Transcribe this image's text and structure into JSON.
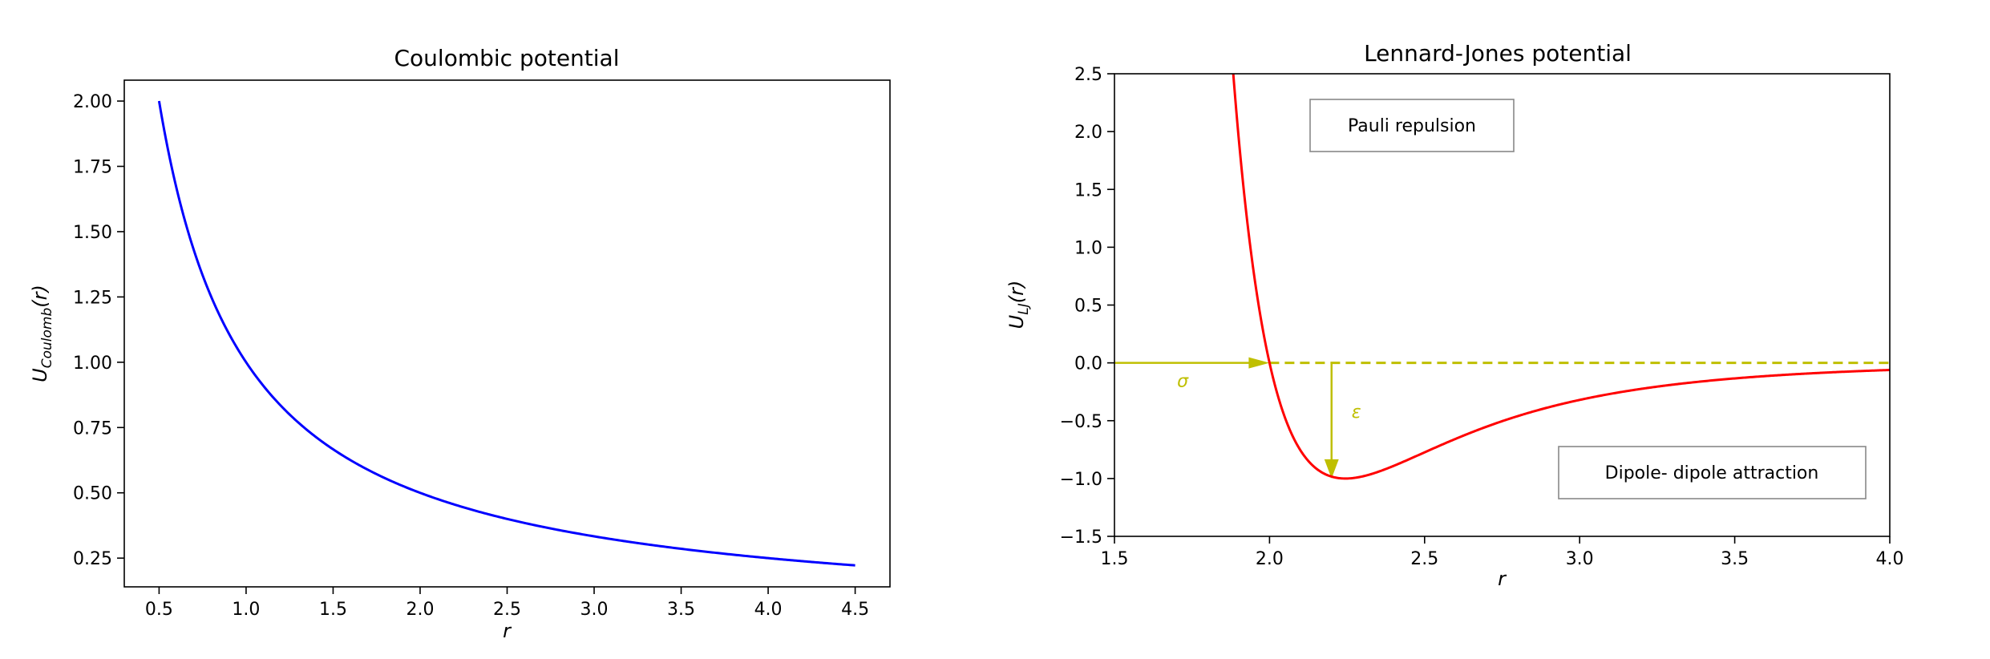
{
  "chart_data": [
    {
      "type": "line",
      "title": "Coulombic potential",
      "xlabel": "r",
      "ylabel_main": "U",
      "ylabel_sub": "Coulomb",
      "ylabel_tail": "(r)",
      "xlim": [
        0.3,
        4.7
      ],
      "ylim": [
        0.14,
        2.08
      ],
      "xticks": [
        "0.5",
        "1.0",
        "1.5",
        "2.0",
        "2.5",
        "3.0",
        "3.5",
        "4.0",
        "4.5"
      ],
      "yticks": [
        "0.25",
        "0.50",
        "0.75",
        "1.00",
        "1.25",
        "1.50",
        "1.75",
        "2.00"
      ],
      "series": [
        {
          "color": "#0000ff",
          "formula": "1/r",
          "x": [
            0.5,
            0.6,
            0.7,
            0.8,
            0.9,
            1.0,
            1.2,
            1.4,
            1.6,
            1.8,
            2.0,
            2.5,
            3.0,
            3.5,
            4.0,
            4.5
          ],
          "y": [
            2.0,
            1.667,
            1.429,
            1.25,
            1.111,
            1.0,
            0.833,
            0.714,
            0.625,
            0.556,
            0.5,
            0.4,
            0.333,
            0.286,
            0.25,
            0.222
          ]
        }
      ],
      "grid": false,
      "legend": "none"
    },
    {
      "type": "line",
      "title": "Lennard-Jones potential",
      "xlabel": "r",
      "ylabel_main": "U",
      "ylabel_sub": "LJ",
      "ylabel_tail": "(r)",
      "xlim": [
        1.5,
        4.0
      ],
      "ylim": [
        -1.5,
        2.5
      ],
      "xticks": [
        "1.5",
        "2.0",
        "2.5",
        "3.0",
        "3.5",
        "4.0"
      ],
      "yticks": [
        "−1.5",
        "−1.0",
        "−0.5",
        "0.0",
        "0.5",
        "1.0",
        "1.5",
        "2.0",
        "2.5"
      ],
      "series": [
        {
          "color": "#ff0000",
          "formula": "4*eps*((sigma/r)^12-(sigma/r)^6), sigma=2.0, eps=1.0",
          "x": [
            1.88,
            1.9,
            1.95,
            2.0,
            2.05,
            2.1,
            2.2,
            2.245,
            2.3,
            2.5,
            2.75,
            3.0,
            3.5,
            4.0
          ],
          "y": [
            2.5,
            2.17,
            0.89,
            0.0,
            -0.48,
            -0.78,
            -0.99,
            -1.0,
            -0.98,
            -0.82,
            -0.57,
            -0.38,
            -0.18,
            -0.06
          ]
        }
      ],
      "annotations": {
        "zero_line": {
          "y": 0.0,
          "x_from": 2.0,
          "x_to": 4.0,
          "style": "dashed",
          "color": "#bfbf00"
        },
        "sigma_arrow": {
          "x_from": 1.5,
          "x_to": 2.0,
          "y": 0.0,
          "color": "#bfbf00",
          "label": "σ",
          "label_at": [
            1.72,
            -0.15
          ]
        },
        "epsilon_arrow": {
          "x": 2.2,
          "y_from": 0.0,
          "y_to": -1.0,
          "color": "#bfbf00",
          "label": "ε",
          "label_at": [
            2.28,
            -0.42
          ]
        },
        "pauli_box": {
          "text": "Pauli repulsion",
          "at": [
            2.45,
            2.03
          ]
        },
        "dipole_box": {
          "text": "Dipole- dipole attraction",
          "at": [
            3.43,
            -0.95
          ]
        }
      },
      "grid": false,
      "legend": "none"
    }
  ]
}
